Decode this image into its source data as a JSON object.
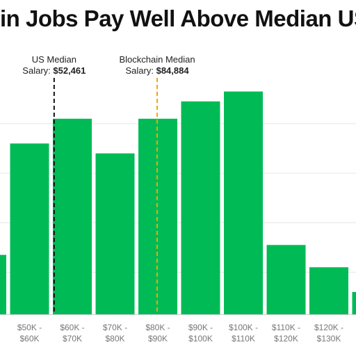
{
  "title": "in Jobs Pay Well Above Median US S",
  "colors": {
    "bar": "#00bb55",
    "us_median_line": "#111111",
    "blockchain_median_line": "#f5a300",
    "grid": "#e6e6e6",
    "tick_label": "#777777"
  },
  "chart_data": {
    "type": "bar",
    "title": "in Jobs Pay Well Above Median US S",
    "xlabel": "",
    "ylabel": "",
    "grid": true,
    "legend": "none",
    "ylim": [
      0,
      100
    ],
    "categories": [
      "",
      "$50K -\n$60K",
      "$60K -\n$70K",
      "$70K -\n$80K",
      "$80K -\n$90K",
      "$90K -\n$100K",
      "$100K -\n$110K",
      "$110K -\n$120K",
      "$120K -\n$130K",
      ""
    ],
    "values": [
      24,
      69,
      79,
      65,
      79,
      86,
      90,
      28,
      19,
      9
    ],
    "annotations": [
      {
        "name": "us-median",
        "label_line1": "US Median",
        "label_prefix": "Salary: ",
        "label_value": "$52,461",
        "x_value": 60.3
      },
      {
        "name": "blockchain-median",
        "label_line1": "Blockchain Median",
        "label_prefix": "Salary: ",
        "label_value": "$84,884",
        "x_value": 84.4
      }
    ]
  }
}
